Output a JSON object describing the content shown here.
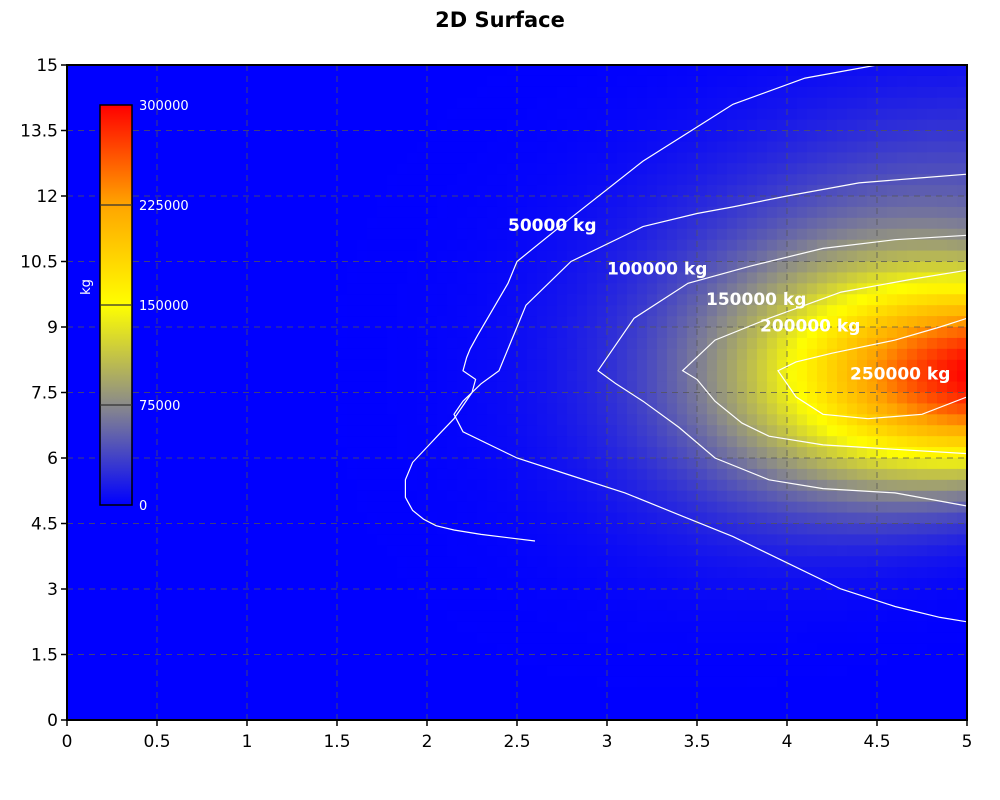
{
  "chart_data": {
    "type": "heatmap",
    "title": "2D Surface",
    "xlim": [
      0,
      5
    ],
    "ylim": [
      0,
      15
    ],
    "x_ticks": [
      "0",
      "0.5",
      "1",
      "1.5",
      "2",
      "2.5",
      "3",
      "3.5",
      "4",
      "4.5",
      "5"
    ],
    "y_ticks": [
      "0",
      "1.5",
      "3",
      "4.5",
      "6",
      "7.5",
      "9",
      "10.5",
      "12",
      "13.5",
      "15"
    ],
    "grid": true,
    "colorscale": {
      "stops": [
        {
          "value": 0,
          "color": "#0000ff"
        },
        {
          "value": 75000,
          "color": "#8a8a8a"
        },
        {
          "value": 150000,
          "color": "#ffff00"
        },
        {
          "value": 225000,
          "color": "#ffa500"
        },
        {
          "value": 300000,
          "color": "#ff0000"
        }
      ],
      "ticks": [
        "0",
        "75000",
        "150000",
        "225000",
        "300000"
      ],
      "label": "kg",
      "range": [
        0,
        300000
      ],
      "placement": "upper-left inside plot"
    },
    "contours": [
      {
        "level": 50000,
        "label": "50000 kg",
        "label_at": [
          2.45,
          11.2
        ],
        "points": [
          [
            2.6,
            4.1
          ],
          [
            2.3,
            4.25
          ],
          [
            2.15,
            4.35
          ],
          [
            2.05,
            4.45
          ],
          [
            1.98,
            4.6
          ],
          [
            1.92,
            4.8
          ],
          [
            1.88,
            5.1
          ],
          [
            1.88,
            5.5
          ],
          [
            1.92,
            5.9
          ],
          [
            2.0,
            6.25
          ],
          [
            2.08,
            6.6
          ],
          [
            2.15,
            6.9
          ],
          [
            2.2,
            7.2
          ],
          [
            2.25,
            7.5
          ],
          [
            2.27,
            7.8
          ],
          [
            2.2,
            8.0
          ],
          [
            2.22,
            8.3
          ],
          [
            2.24,
            8.5
          ],
          [
            2.28,
            8.8
          ],
          [
            2.45,
            10.0
          ],
          [
            2.5,
            10.5
          ],
          [
            2.8,
            11.5
          ],
          [
            3.2,
            12.8
          ],
          [
            3.7,
            14.1
          ],
          [
            4.1,
            14.7
          ],
          [
            4.5,
            15.0
          ]
        ]
      },
      {
        "level": 100000,
        "label": "100000 kg",
        "label_at": [
          3.0,
          10.2
        ],
        "points": [
          [
            5.0,
            2.25
          ],
          [
            4.85,
            2.35
          ],
          [
            4.6,
            2.6
          ],
          [
            4.3,
            3.0
          ],
          [
            4.0,
            3.6
          ],
          [
            3.7,
            4.2
          ],
          [
            3.4,
            4.7
          ],
          [
            3.1,
            5.2
          ],
          [
            2.8,
            5.6
          ],
          [
            2.5,
            6.0
          ],
          [
            2.2,
            6.6
          ],
          [
            2.15,
            7.0
          ],
          [
            2.2,
            7.3
          ],
          [
            2.3,
            7.7
          ],
          [
            2.4,
            8.0
          ],
          [
            2.55,
            9.5
          ],
          [
            2.8,
            10.5
          ],
          [
            3.2,
            11.3
          ],
          [
            3.5,
            11.6
          ],
          [
            3.7,
            11.75
          ],
          [
            4.0,
            12.0
          ],
          [
            4.4,
            12.3
          ],
          [
            4.7,
            12.4
          ],
          [
            5.0,
            12.5
          ]
        ]
      },
      {
        "level": 150000,
        "label": "150000 kg",
        "label_at": [
          3.55,
          9.5
        ],
        "points": [
          [
            5.0,
            4.9
          ],
          [
            4.6,
            5.2
          ],
          [
            4.2,
            5.3
          ],
          [
            3.9,
            5.5
          ],
          [
            3.6,
            6.0
          ],
          [
            3.4,
            6.7
          ],
          [
            3.2,
            7.3
          ],
          [
            3.05,
            7.7
          ],
          [
            2.95,
            8.0
          ],
          [
            3.15,
            9.2
          ],
          [
            3.45,
            10.0
          ],
          [
            3.8,
            10.4
          ],
          [
            4.2,
            10.8
          ],
          [
            4.6,
            11.0
          ],
          [
            5.0,
            11.1
          ]
        ]
      },
      {
        "level": 200000,
        "label": "200000 kg",
        "label_at": [
          3.85,
          8.9
        ],
        "points": [
          [
            5.0,
            6.1
          ],
          [
            4.6,
            6.2
          ],
          [
            4.2,
            6.3
          ],
          [
            3.9,
            6.5
          ],
          [
            3.75,
            6.8
          ],
          [
            3.6,
            7.3
          ],
          [
            3.5,
            7.8
          ],
          [
            3.42,
            8.0
          ],
          [
            3.6,
            8.7
          ],
          [
            3.9,
            9.2
          ],
          [
            4.3,
            9.8
          ],
          [
            4.7,
            10.1
          ],
          [
            5.0,
            10.3
          ]
        ]
      },
      {
        "level": 250000,
        "label": "250000 kg",
        "label_at": [
          4.35,
          7.8
        ],
        "points": [
          [
            5.0,
            7.4
          ],
          [
            4.75,
            7.0
          ],
          [
            4.45,
            6.9
          ],
          [
            4.2,
            7.0
          ],
          [
            4.05,
            7.4
          ],
          [
            3.95,
            8.0
          ],
          [
            4.05,
            8.2
          ],
          [
            4.25,
            8.4
          ],
          [
            4.6,
            8.7
          ],
          [
            4.85,
            9.0
          ],
          [
            5.0,
            9.2
          ]
        ]
      }
    ]
  }
}
